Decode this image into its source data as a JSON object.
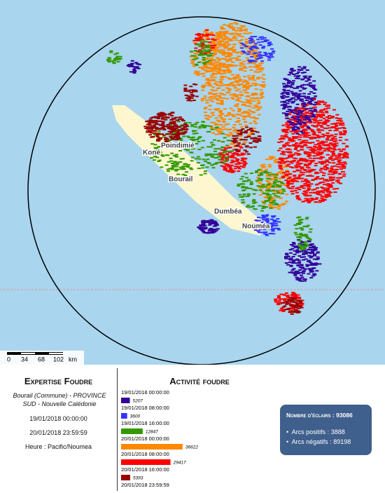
{
  "map": {
    "labels": [
      "Poindimié",
      "Koné",
      "Bourail",
      "Dumbéa",
      "Nouméa"
    ],
    "scale": {
      "ticks": [
        0,
        34,
        68,
        102
      ],
      "unit": "km"
    }
  },
  "expertise": {
    "title": "Expertise Foudre",
    "location": "Bourail (Commune) - PROVINCE SUD - Nouvelle Calédonie",
    "start": "19/01/2018 00:00:00",
    "end": "20/01/2018 23:59:59",
    "timezone": "Heure : Pacific/Noumea"
  },
  "activity": {
    "title": "Activité foudre",
    "times": [
      "19/01/2018 00:00:00",
      "19/01/2018 08:00:00",
      "19/01/2018 16:00:00",
      "20/01/2018 00:00:00",
      "20/01/2018 08:00:00",
      "20/01/2018 16:00:00",
      "20/01/2018 23:59:59"
    ],
    "bars": [
      {
        "value": 5207,
        "color": "#330099"
      },
      {
        "value": 3600,
        "color": "#3333ff"
      },
      {
        "value": 12847,
        "color": "#339900"
      },
      {
        "value": 36622,
        "color": "#ff8800"
      },
      {
        "value": 29417,
        "color": "#ff0000"
      },
      {
        "value": 5393,
        "color": "#990000"
      }
    ]
  },
  "summary": {
    "total_label": "Nombre d'éclairs :",
    "total": 93086,
    "positive_label": "Arcs positifs :",
    "positive": 3888,
    "negative_label": "Arcs négatifs :",
    "negative": 89198
  }
}
